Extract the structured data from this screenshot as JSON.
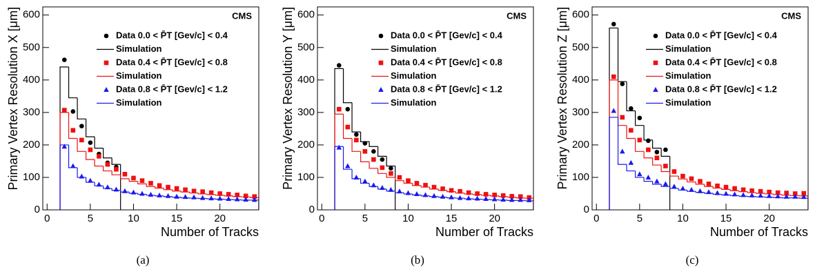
{
  "chart_data": [
    {
      "type": "scatter",
      "caption": "(a)",
      "annotation": "CMS",
      "x_label": "Number of Tracks",
      "y_label": "Primary Vertex Resolution X [μm]",
      "xlim": [
        -0.5,
        24.5
      ],
      "ylim": [
        0,
        625
      ],
      "xticks": [
        0,
        5,
        10,
        15,
        20
      ],
      "yticks": [
        0,
        100,
        200,
        300,
        400,
        500,
        600
      ],
      "series": [
        {
          "name": "Data  0.0 < P̄T [Gev/c] <  0.4",
          "color": "#000000",
          "marker": "circle",
          "x": [
            2,
            3,
            4,
            5,
            6,
            7,
            8
          ],
          "values": [
            462,
            303,
            258,
            207,
            172,
            145,
            132
          ]
        },
        {
          "name": "Simulation",
          "color": "#000000",
          "bins": [
            1.5,
            2.5,
            3.5,
            4.5,
            5.5,
            6.5,
            7.5,
            8.5
          ],
          "values": [
            440,
            345,
            280,
            225,
            190,
            160,
            140
          ]
        },
        {
          "name": "Data  0.4 < P̄T [Gev/c] <  0.8",
          "color": "#ee1111",
          "marker": "square",
          "x": [
            2,
            3,
            4,
            5,
            6,
            7,
            8,
            9,
            10,
            11,
            12,
            13,
            14,
            15,
            16,
            17,
            18,
            19,
            20,
            21,
            22,
            23,
            24
          ],
          "values": [
            307,
            245,
            215,
            185,
            165,
            140,
            125,
            110,
            98,
            90,
            82,
            75,
            70,
            66,
            62,
            58,
            56,
            53,
            50,
            48,
            46,
            43,
            41
          ]
        },
        {
          "name": "Simulation",
          "color": "#ee1111",
          "bins": [
            1.5,
            2.5,
            3.5,
            4.5,
            5.5,
            6.5,
            7.5,
            8.5,
            9.5,
            10.5,
            11.5,
            12.5,
            13.5,
            14.5,
            15.5,
            16.5,
            17.5,
            18.5,
            19.5,
            20.5,
            21.5,
            22.5,
            23.5,
            24.5
          ],
          "values": [
            300,
            220,
            180,
            155,
            135,
            120,
            108,
            96,
            88,
            80,
            72,
            67,
            62,
            58,
            55,
            52,
            49,
            47,
            45,
            43,
            41,
            40,
            38
          ]
        },
        {
          "name": "Data  0.8 < P̄T [Gev/c] <  1.2",
          "color": "#1a1aee",
          "marker": "triangle",
          "x": [
            2,
            3,
            4,
            5,
            6,
            7,
            8,
            9,
            10,
            11,
            12,
            13,
            14,
            15,
            16,
            17,
            18,
            19,
            20,
            21,
            22,
            23,
            24
          ],
          "values": [
            195,
            135,
            103,
            90,
            78,
            70,
            63,
            58,
            54,
            50,
            47,
            45,
            43,
            41,
            40,
            39,
            37,
            36,
            35,
            34,
            33,
            32,
            31
          ]
        },
        {
          "name": "Simulation",
          "color": "#1a1aee",
          "bins": [
            1.5,
            2.5,
            3.5,
            4.5,
            5.5,
            6.5,
            7.5,
            8.5,
            9.5,
            10.5,
            11.5,
            12.5,
            13.5,
            14.5,
            15.5,
            16.5,
            17.5,
            18.5,
            19.5,
            20.5,
            21.5,
            22.5,
            23.5,
            24.5
          ],
          "values": [
            200,
            130,
            100,
            85,
            74,
            66,
            60,
            55,
            51,
            48,
            45,
            43,
            41,
            39,
            37,
            36,
            35,
            34,
            33,
            32,
            31,
            30,
            30
          ]
        }
      ]
    },
    {
      "type": "scatter",
      "caption": "(b)",
      "annotation": "CMS",
      "x_label": "Number of Tracks",
      "y_label": "Primary Vertex Resolution Y [μm]",
      "xlim": [
        -0.5,
        24.5
      ],
      "ylim": [
        0,
        625
      ],
      "xticks": [
        0,
        5,
        10,
        15,
        20
      ],
      "yticks": [
        0,
        100,
        200,
        300,
        400,
        500,
        600
      ],
      "series": [
        {
          "name": "Data  0.0 < P̄T [Gev/c] <  0.4",
          "color": "#000000",
          "marker": "circle",
          "x": [
            2,
            3,
            4,
            5,
            6,
            7,
            8
          ],
          "values": [
            445,
            310,
            232,
            205,
            180,
            155,
            128
          ]
        },
        {
          "name": "Simulation",
          "color": "#000000",
          "bins": [
            1.5,
            2.5,
            3.5,
            4.5,
            5.5,
            6.5,
            7.5,
            8.5
          ],
          "values": [
            435,
            330,
            240,
            210,
            195,
            165,
            135
          ]
        },
        {
          "name": "Data  0.4 < P̄T [Gev/c] <  0.8",
          "color": "#ee1111",
          "marker": "square",
          "x": [
            2,
            3,
            4,
            5,
            6,
            7,
            8,
            9,
            10,
            11,
            12,
            13,
            14,
            15,
            16,
            17,
            18,
            19,
            20,
            21,
            22,
            23,
            24
          ],
          "values": [
            310,
            255,
            215,
            180,
            155,
            130,
            112,
            100,
            90,
            82,
            76,
            70,
            65,
            60,
            57,
            53,
            50,
            48,
            46,
            44,
            42,
            41,
            38
          ]
        },
        {
          "name": "Simulation",
          "color": "#ee1111",
          "bins": [
            1.5,
            2.5,
            3.5,
            4.5,
            5.5,
            6.5,
            7.5,
            8.5,
            9.5,
            10.5,
            11.5,
            12.5,
            13.5,
            14.5,
            15.5,
            16.5,
            17.5,
            18.5,
            19.5,
            20.5,
            21.5,
            22.5,
            23.5,
            24.5
          ],
          "values": [
            295,
            220,
            180,
            148,
            128,
            112,
            100,
            90,
            82,
            75,
            70,
            64,
            60,
            56,
            52,
            49,
            47,
            45,
            43,
            41,
            39,
            37,
            36
          ]
        },
        {
          "name": "Data  0.8 < P̄T [Gev/c] <  1.2",
          "color": "#1a1aee",
          "marker": "triangle",
          "x": [
            2,
            3,
            4,
            5,
            6,
            7,
            8,
            9,
            10,
            11,
            12,
            13,
            14,
            15,
            16,
            17,
            18,
            19,
            20,
            21,
            22,
            23,
            24
          ],
          "values": [
            192,
            135,
            100,
            88,
            76,
            68,
            62,
            57,
            52,
            49,
            46,
            43,
            41,
            39,
            37,
            36,
            35,
            34,
            33,
            32,
            31,
            31,
            30
          ]
        },
        {
          "name": "Simulation",
          "color": "#1a1aee",
          "bins": [
            1.5,
            2.5,
            3.5,
            4.5,
            5.5,
            6.5,
            7.5,
            8.5,
            9.5,
            10.5,
            11.5,
            12.5,
            13.5,
            14.5,
            15.5,
            16.5,
            17.5,
            18.5,
            19.5,
            20.5,
            21.5,
            22.5,
            23.5,
            24.5
          ],
          "values": [
            195,
            125,
            96,
            82,
            72,
            64,
            58,
            53,
            49,
            46,
            43,
            41,
            39,
            37,
            36,
            34,
            33,
            32,
            31,
            30,
            29,
            29,
            28
          ]
        }
      ]
    },
    {
      "type": "scatter",
      "caption": "(c)",
      "annotation": "CMS",
      "x_label": "Number of Tracks",
      "y_label": "Primary Vertex Resolution Z [μm]",
      "xlim": [
        -0.5,
        24.5
      ],
      "ylim": [
        0,
        625
      ],
      "xticks": [
        0,
        5,
        10,
        15,
        20
      ],
      "yticks": [
        0,
        100,
        200,
        300,
        400,
        500,
        600
      ],
      "series": [
        {
          "name": "Data  0.0 < P̄T [Gev/c] <  0.4",
          "color": "#000000",
          "marker": "circle",
          "x": [
            2,
            3,
            4,
            5,
            6,
            7,
            8
          ],
          "values": [
            572,
            388,
            312,
            283,
            213,
            178,
            185
          ]
        },
        {
          "name": "Simulation",
          "color": "#000000",
          "bins": [
            1.5,
            2.5,
            3.5,
            4.5,
            5.5,
            6.5,
            7.5,
            8.5
          ],
          "values": [
            560,
            395,
            305,
            260,
            215,
            190,
            165
          ]
        },
        {
          "name": "Data  0.4 < P̄T [Gev/c] <  0.8",
          "color": "#ee1111",
          "marker": "square",
          "x": [
            2,
            3,
            4,
            5,
            6,
            7,
            8,
            9,
            10,
            11,
            12,
            13,
            14,
            15,
            16,
            17,
            18,
            19,
            20,
            21,
            22,
            23,
            24
          ],
          "values": [
            410,
            285,
            245,
            215,
            185,
            160,
            135,
            118,
            104,
            96,
            88,
            80,
            74,
            70,
            66,
            62,
            59,
            57,
            55,
            53,
            52,
            50,
            51
          ]
        },
        {
          "name": "Simulation",
          "color": "#ee1111",
          "bins": [
            1.5,
            2.5,
            3.5,
            4.5,
            5.5,
            6.5,
            7.5,
            8.5,
            9.5,
            10.5,
            11.5,
            12.5,
            13.5,
            14.5,
            15.5,
            16.5,
            17.5,
            18.5,
            19.5,
            20.5,
            21.5,
            22.5,
            23.5,
            24.5
          ],
          "values": [
            400,
            260,
            220,
            180,
            160,
            138,
            118,
            104,
            95,
            86,
            79,
            72,
            67,
            63,
            59,
            56,
            53,
            51,
            49,
            47,
            45,
            44,
            43
          ]
        },
        {
          "name": "Data  0.8 < P̄T [Gev/c] <  1.2",
          "color": "#1a1aee",
          "marker": "triangle",
          "x": [
            2,
            3,
            4,
            5,
            6,
            7,
            8,
            9,
            10,
            11,
            12,
            13,
            14,
            15,
            16,
            17,
            18,
            19,
            20,
            21,
            22,
            23,
            24
          ],
          "values": [
            305,
            180,
            145,
            110,
            100,
            88,
            80,
            72,
            66,
            62,
            58,
            55,
            52,
            50,
            48,
            46,
            45,
            44,
            43,
            42,
            41,
            41,
            40
          ]
        },
        {
          "name": "Simulation",
          "color": "#1a1aee",
          "bins": [
            1.5,
            2.5,
            3.5,
            4.5,
            5.5,
            6.5,
            7.5,
            8.5,
            9.5,
            10.5,
            11.5,
            12.5,
            13.5,
            14.5,
            15.5,
            16.5,
            17.5,
            18.5,
            19.5,
            20.5,
            21.5,
            22.5,
            23.5,
            24.5
          ],
          "values": [
            285,
            140,
            120,
            100,
            88,
            79,
            72,
            66,
            61,
            57,
            54,
            51,
            48,
            46,
            44,
            42,
            41,
            40,
            39,
            38,
            37,
            37,
            36
          ]
        }
      ]
    }
  ]
}
